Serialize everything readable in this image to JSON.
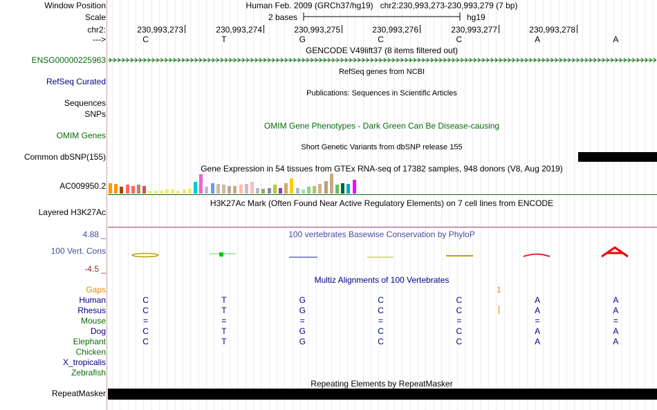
{
  "position": {
    "label": "Window Position",
    "text": "Human Feb. 2009 (GRCh37/hg19)   chr2:230,993,273-230,993,279 (7 bp)"
  },
  "scale": {
    "label": "Scale",
    "value": "2 bases",
    "assembly": "hg19"
  },
  "ruler": {
    "label": "chr2:",
    "ticks": [
      "230,993,273",
      "230,993,274",
      "230,993,275",
      "230,993,276",
      "230,993,277",
      "230,993,278"
    ]
  },
  "strand": {
    "label": "--->",
    "bases": [
      "C",
      "T",
      "G",
      "C",
      "C",
      "A",
      "A"
    ]
  },
  "gencode": {
    "title": "GENCODE V49lift37 (8 items filtered out)",
    "label": "ENSG00000225963",
    "color": "#0a6b0a"
  },
  "refseq": {
    "title": "RefSeq genes from NCBI",
    "label": "RefSeq Curated"
  },
  "publications": {
    "title": "Publications: Sequences in Scientific Articles",
    "label1": "Sequences",
    "label2": "SNPs"
  },
  "omim": {
    "title": "OMIM Gene Phenotypes - Dark Green Can Be Disease-causing",
    "label": "OMIM Genes"
  },
  "dbsnp": {
    "title": "Short Genetic Variants from dbSNP release 155",
    "label": "Common dbSNP(155)"
  },
  "gtex": {
    "title": "Gene Expression in 54 tissues from GTEx RNA-seq of 17382 samples, 948 donors (V8, Aug 2019)",
    "label": "AC009950.2",
    "levels": [
      0.55,
      0.5,
      0.35,
      0.45,
      0.4,
      0.45,
      0.4,
      0.15,
      0.15,
      0.15,
      0.2,
      0.2,
      0.15,
      0.2,
      0.25,
      0.6,
      1.0,
      0.35,
      0.55,
      0.5,
      0.45,
      0.4,
      0.4,
      0.45,
      0.5,
      0.6,
      0.3,
      0.25,
      0.3,
      0.45,
      0.3,
      0.55,
      0.8,
      0.3,
      0.2,
      0.35,
      0.4,
      0.5,
      0.65,
      1.05,
      0.45,
      0.55,
      0.5,
      0.7
    ],
    "colors": [
      "#ff9900",
      "#ff9900",
      "#aa4400",
      "#ff6666",
      "#ff6666",
      "#bb8866",
      "#cc5555",
      "#eeee66",
      "#eeee66",
      "#eeee66",
      "#eeee66",
      "#eeee66",
      "#eeee66",
      "#eeee66",
      "#eeee66",
      "#00cccc",
      "#ee66cc",
      "#bbbbdd",
      "#6699ff",
      "#ccbbaa",
      "#ccbbaa",
      "#bbaa99",
      "#ccaa88",
      "#ffbbaa",
      "#ccbbcc",
      "#ffbbbb",
      "#bbbbbb",
      "#99aa66",
      "#8888aa",
      "#bbcc33",
      "#9933cc",
      "#ccaa66",
      "#ffcc00",
      "#aabbcc",
      "#aaddaa",
      "#99cc99",
      "#aacc66",
      "#d2b48c",
      "#c0a080",
      "#c8a882",
      "#66bb66",
      "#006633",
      "#00aacc",
      "#ff00ff"
    ]
  },
  "h3k27ac": {
    "title": "H3K27Ac Mark (Often Found Near Active Regulatory Elements) on 7 cell lines from ENCODE",
    "label": "Layered H3K27Ac"
  },
  "phylop": {
    "title": "100 vertebrates Basewise Conservation by PhyloP",
    "label": "100 Vert. Cons",
    "max": "4.88 _",
    "min": "-4.5 _"
  },
  "multiz": {
    "title": "Multiz Alignments of 100 Vertebrates",
    "gaps_label": "Gaps",
    "gap_marker": "1",
    "species": [
      {
        "name": "Human",
        "color": "#000080",
        "bases": [
          "C",
          "T",
          "G",
          "C",
          "C",
          "A",
          "A"
        ]
      },
      {
        "name": "Rhesus",
        "color": "#000080",
        "bases": [
          "C",
          "T",
          "G",
          "C",
          "C",
          "A",
          "A"
        ]
      },
      {
        "name": "Mouse",
        "color": "#0a6b0a",
        "bases": [
          "=",
          "=",
          "=",
          "=",
          "=",
          "=",
          "="
        ]
      },
      {
        "name": "Dog",
        "color": "#000080",
        "bases": [
          "C",
          "T",
          "G",
          "C",
          "C",
          "A",
          "A"
        ]
      },
      {
        "name": "Elephant",
        "color": "#0a6b0a",
        "bases": [
          "C",
          "T",
          "G",
          "C",
          "C",
          "A",
          "A"
        ]
      },
      {
        "name": "Chicken",
        "color": "#0a6b0a",
        "bases": []
      },
      {
        "name": "X_tropicalis",
        "color": "#000080",
        "bases": []
      },
      {
        "name": "Zebrafish",
        "color": "#0a6b0a",
        "bases": []
      }
    ]
  },
  "repeatmasker": {
    "title": "Repeating Elements by RepeatMasker",
    "label": "RepeatMasker"
  },
  "colors": {
    "navy": "#000080",
    "green": "#0a6b0a",
    "gaps": "#e08a00",
    "phylop_label": "#4a4a9a",
    "phylop_min": "#8b2a2a",
    "h3k27ac_line": "#aa3377"
  }
}
